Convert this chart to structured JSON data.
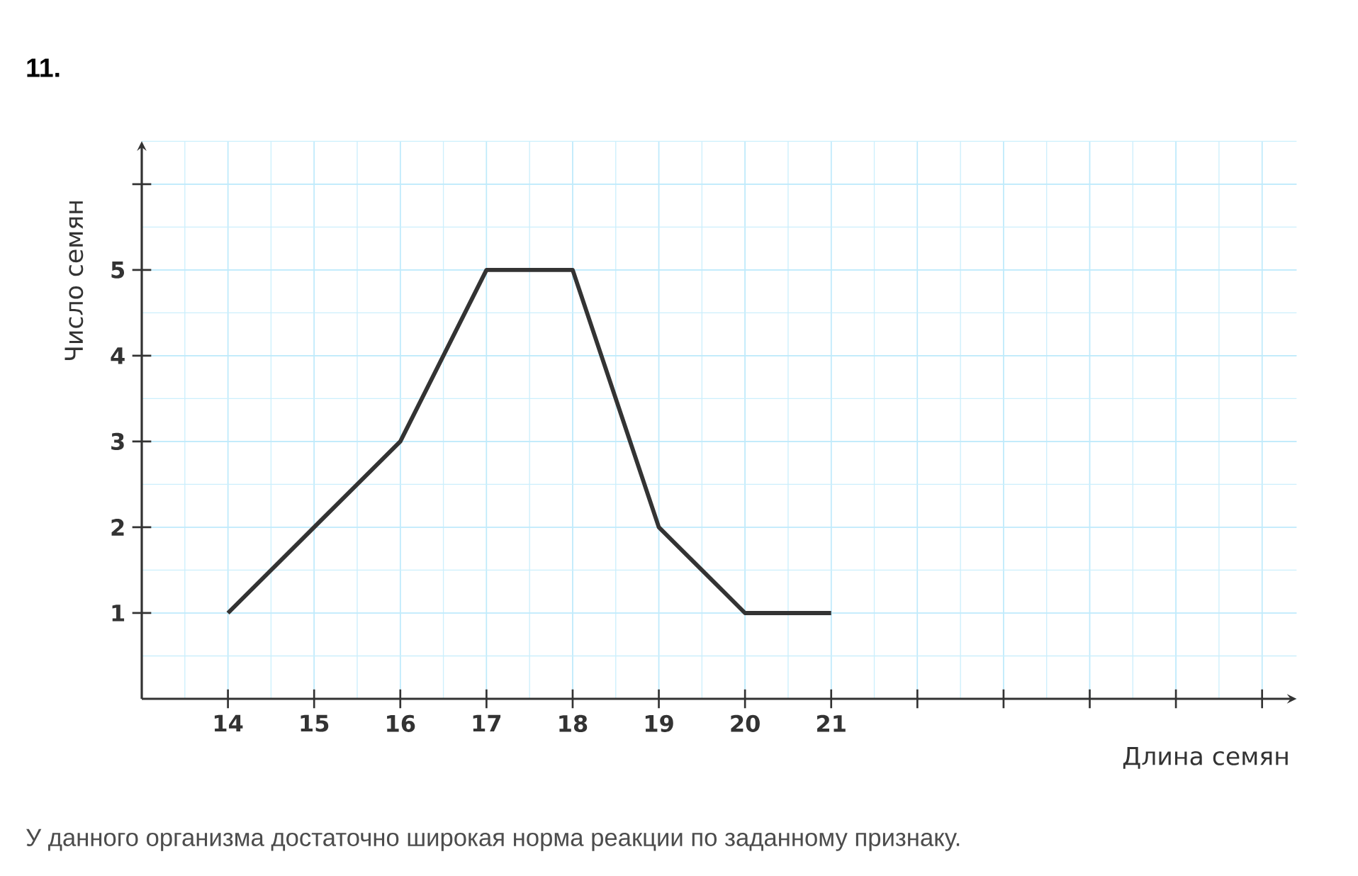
{
  "chart_data": {
    "type": "line",
    "title": "11.",
    "xlabel": "Длина семян",
    "ylabel": "Число семян",
    "x": [
      14,
      15,
      16,
      17,
      18,
      19,
      20,
      21
    ],
    "series": [
      {
        "color": "#333333",
        "values": [
          1,
          2,
          3,
          5,
          5,
          2,
          1,
          1
        ]
      }
    ],
    "xlim": [
      13,
      26.4
    ],
    "ylim": [
      0,
      6.5
    ],
    "xticks": [
      14,
      15,
      16,
      17,
      18,
      19,
      20,
      21,
      {
        "value": 22,
        "label": null
      },
      {
        "value": 23,
        "label": null
      },
      {
        "value": 24,
        "label": null
      },
      {
        "value": 25,
        "label": null
      },
      {
        "value": 26,
        "label": null
      }
    ],
    "yticks": [
      1,
      2,
      3,
      4,
      5,
      {
        "value": 6,
        "label": null
      }
    ],
    "grid": true,
    "marker": "none",
    "line_style": "solid",
    "annotations": [
      "У данного организма достаточно широкая норма реакции по заданному признаку."
    ]
  }
}
